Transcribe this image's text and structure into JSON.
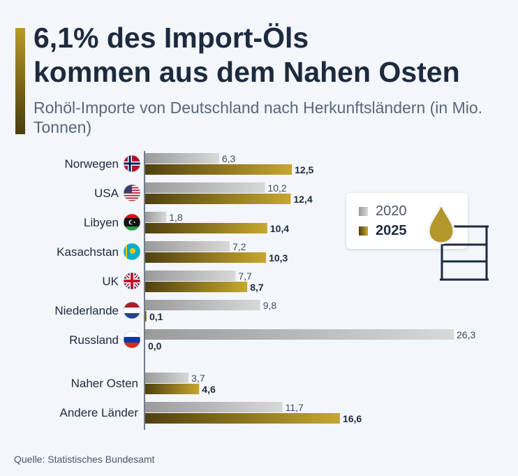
{
  "title_line1": "6,1% des Import-Öls",
  "title_line2": "kommen aus dem Nahen Osten",
  "subtitle": "Rohöl-Importe von Deutschland nach Herkunftsländern (in Mio. Tonnen)",
  "source": "Quelle: Statistisches Bundesamt",
  "colors": {
    "accent": "#8c7420",
    "series_2020": "#b3b3b3",
    "series_2025": "#8c7420",
    "axis": "#1d2a3e",
    "text": "#1d2a3e"
  },
  "legend": [
    {
      "label": "2020"
    },
    {
      "label": "2025"
    }
  ],
  "icons": [
    "oil-drop-icon",
    "oil-barrel-icon"
  ],
  "chart_data": {
    "type": "bar",
    "orientation": "horizontal",
    "categories": [
      "Norwegen",
      "USA",
      "Libyen",
      "Kasachstan",
      "UK",
      "Niederlande",
      "Russland",
      "Naher Osten",
      "Andere Länder"
    ],
    "flags": [
      "norway-flag-icon",
      "usa-flag-icon",
      "libya-flag-icon",
      "kazakhstan-flag-icon",
      "uk-flag-icon",
      "netherlands-flag-icon",
      "russia-flag-icon",
      "",
      ""
    ],
    "series": [
      {
        "name": "2020",
        "values": [
          6.3,
          10.2,
          1.8,
          7.2,
          7.7,
          9.8,
          26.3,
          3.7,
          11.7
        ],
        "labels": [
          "6,3",
          "10,2",
          "1,8",
          "7,2",
          "7,7",
          "9,8",
          "26,3",
          "3,7",
          "11,7"
        ]
      },
      {
        "name": "2025",
        "values": [
          12.5,
          12.4,
          10.4,
          10.3,
          8.7,
          0.1,
          0.0,
          4.6,
          16.6
        ],
        "labels": [
          "12,5",
          "12,4",
          "10,4",
          "10,3",
          "8,7",
          "0,1",
          "0,0",
          "4,6",
          "16,6"
        ]
      }
    ],
    "xlim": [
      0,
      26.3
    ],
    "grid": false,
    "legend_position": "right"
  }
}
